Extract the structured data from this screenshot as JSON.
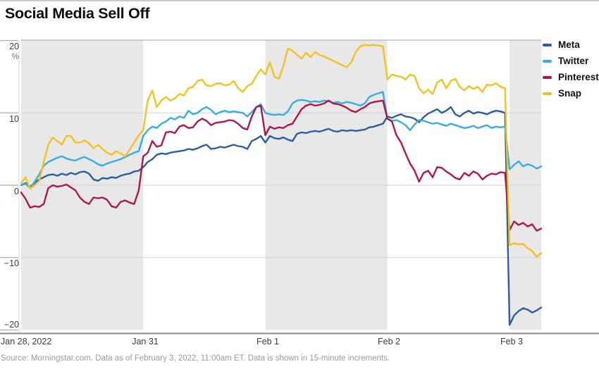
{
  "title": "Social Media Sell Off",
  "source": "Source: Morningstar.com. Data as of February 3, 2022, 11:00am ET. Data is shown in 15-minute increments.",
  "y_axis": {
    "unit": "%",
    "ticks": [
      "20",
      "10",
      "0",
      "−10",
      "−20"
    ],
    "values": [
      20,
      10,
      0,
      -10,
      -20
    ]
  },
  "x_axis": {
    "labels": [
      "Jan 28, 2022",
      "Jan 31",
      "Feb 1",
      "Feb 2",
      "Feb 3"
    ]
  },
  "chart_data": {
    "type": "line",
    "title": "Social Media Sell Off",
    "ylabel": "%",
    "ylim": [
      -20,
      20
    ],
    "gridline_values": [
      10,
      0,
      -10
    ],
    "increment": "15-minute",
    "n_points": 116,
    "x_tick_labels": [
      "Jan 28, 2022",
      "Jan 31",
      "Feb 1",
      "Feb 2",
      "Feb 3"
    ],
    "x_tick_indices": [
      0,
      27,
      54,
      81,
      108
    ],
    "session_bands": {
      "boundary_indices": [
        0,
        27,
        54,
        81,
        108,
        115
      ],
      "fills": [
        "shaded",
        "white",
        "shaded",
        "white",
        "shaded"
      ]
    },
    "series": [
      {
        "name": "Meta",
        "color": "#2b5d9f",
        "values": [
          0,
          0.3,
          -0.2,
          0.3,
          0.8,
          1.1,
          1.4,
          1.5,
          1.3,
          1.6,
          1.4,
          1.7,
          1.5,
          1.8,
          1.9,
          1.6,
          0.8,
          0.6,
          1.0,
          0.9,
          1.1,
          1.0,
          1.3,
          1.5,
          1.6,
          1.9,
          2.0,
          2.5,
          3.2,
          3.6,
          4.2,
          4.4,
          4.3,
          4.5,
          4.6,
          4.7,
          4.8,
          5.0,
          4.9,
          5.1,
          5.4,
          5.6,
          5.0,
          5.1,
          5.3,
          5.2,
          5.4,
          5.6,
          5.4,
          5.3,
          5.0,
          6.1,
          6.4,
          6.8,
          5.9,
          6.8,
          6.5,
          6.4,
          6.6,
          6.3,
          6.1,
          7.1,
          7.3,
          7.2,
          7.4,
          7.5,
          7.4,
          7.6,
          7.8,
          7.5,
          7.4,
          7.6,
          7.5,
          7.6,
          7.5,
          7.6,
          7.7,
          8.0,
          8.1,
          8.3,
          8.5,
          9.5,
          9.3,
          9.6,
          9.8,
          9.5,
          9.4,
          9.2,
          8.7,
          9.4,
          9.9,
          10.2,
          10.5,
          10.0,
          10.3,
          10.8,
          9.8,
          9.5,
          10.0,
          10.3,
          9.9,
          10.1,
          10.0,
          9.8,
          10.1,
          10.3,
          10.2,
          10.0,
          -19.3,
          -18.0,
          -17.4,
          -17.0,
          -17.2,
          -17.6,
          -17.3,
          -16.9
        ]
      },
      {
        "name": "Twitter",
        "color": "#36aee1",
        "values": [
          0,
          0.2,
          -0.4,
          0.5,
          1.5,
          2.7,
          3.2,
          3.5,
          3.8,
          4.0,
          3.7,
          3.5,
          3.4,
          3.7,
          3.9,
          3.6,
          3.3,
          2.9,
          2.7,
          3.0,
          3.2,
          3.4,
          3.6,
          3.9,
          4.2,
          4.5,
          4.7,
          6.8,
          7.6,
          8.1,
          7.9,
          8.5,
          8.8,
          9.3,
          9.1,
          9.5,
          9.3,
          10.3,
          9.8,
          10.0,
          10.5,
          10.8,
          10.4,
          9.8,
          10.1,
          10.3,
          10.1,
          10.2,
          10.1,
          10.0,
          9.5,
          10.1,
          10.8,
          11.2,
          10.0,
          9.8,
          9.7,
          9.8,
          9.7,
          10.2,
          11.3,
          11.7,
          11.8,
          11.7,
          11.5,
          11.6,
          11.5,
          11.7,
          11.6,
          11.4,
          11.5,
          11.3,
          11.5,
          11.4,
          11.2,
          11.0,
          11.3,
          12.2,
          12.5,
          12.7,
          12.9,
          9.2,
          8.9,
          9.0,
          8.7,
          8.3,
          7.6,
          8.4,
          9.0,
          8.9,
          8.7,
          8.5,
          8.6,
          8.4,
          8.2,
          8.5,
          8.3,
          8.1,
          7.9,
          8.0,
          8.2,
          7.9,
          8.1,
          8.3,
          7.9,
          8.1,
          8.0,
          8.1,
          2.2,
          2.8,
          3.3,
          2.6,
          2.9,
          2.7,
          2.3,
          2.6
        ]
      },
      {
        "name": "Pinterest",
        "color": "#b01747",
        "values": [
          -1.0,
          -1.9,
          -3.1,
          -2.9,
          -3.0,
          -2.6,
          -0.4,
          0.0,
          -0.2,
          -0.1,
          0.1,
          -0.3,
          -0.7,
          -1.7,
          -2.3,
          -2.6,
          -1.7,
          -1.8,
          -1.7,
          -2.0,
          -2.9,
          -3.1,
          -2.3,
          -2.1,
          -2.4,
          -2.6,
          -0.7,
          4.0,
          4.5,
          6.1,
          5.3,
          5.5,
          7.3,
          7.4,
          7.2,
          8.1,
          8.3,
          7.9,
          8.0,
          8.8,
          9.2,
          8.9,
          8.3,
          8.6,
          8.7,
          8.8,
          9.0,
          8.9,
          8.5,
          7.9,
          7.7,
          9.5,
          10.8,
          11.0,
          6.9,
          8.1,
          7.8,
          8.0,
          7.9,
          8.3,
          8.5,
          9.5,
          10.5,
          11.0,
          11.2,
          11.0,
          11.1,
          11.3,
          11.7,
          11.3,
          11.2,
          11.0,
          10.7,
          10.3,
          10.1,
          10.5,
          10.8,
          11.3,
          11.5,
          11.6,
          11.7,
          9.2,
          8.8,
          6.9,
          5.9,
          4.4,
          3.0,
          2.0,
          0.5,
          1.7,
          2.0,
          1.1,
          2.5,
          2.4,
          1.9,
          1.5,
          1.0,
          0.8,
          1.7,
          1.3,
          1.9,
          1.6,
          0.8,
          1.3,
          1.6,
          1.5,
          1.8,
          1.7,
          -6.2,
          -5.0,
          -5.5,
          -5.2,
          -5.7,
          -5.4,
          -6.3,
          -6.0
        ]
      },
      {
        "name": "Snap",
        "color": "#f4c21f",
        "values": [
          0.3,
          1.1,
          -0.5,
          0.0,
          0.6,
          3.2,
          5.6,
          6.6,
          6.1,
          5.6,
          6.8,
          6.8,
          5.9,
          5.9,
          6.2,
          5.8,
          5.1,
          5.6,
          5.0,
          4.5,
          4.2,
          4.7,
          4.4,
          4.0,
          4.9,
          5.9,
          6.9,
          7.6,
          11.7,
          13.1,
          10.8,
          11.7,
          12.2,
          11.7,
          12.0,
          12.6,
          12.4,
          13.4,
          13.6,
          14.4,
          14.6,
          13.8,
          13.7,
          14.0,
          14.1,
          13.8,
          13.9,
          14.4,
          13.4,
          12.9,
          13.7,
          14.0,
          15.1,
          16.0,
          15.3,
          17.0,
          15.0,
          14.7,
          16.5,
          18.9,
          18.6,
          18.0,
          17.5,
          18.3,
          17.7,
          18.4,
          18.0,
          17.8,
          17.5,
          17.2,
          16.9,
          16.6,
          16.3,
          17.0,
          18.4,
          19.2,
          19.4,
          19.3,
          19.4,
          19.3,
          19.2,
          14.6,
          15.3,
          15.1,
          15.0,
          14.6,
          15.3,
          15.1,
          13.4,
          12.7,
          13.2,
          12.6,
          14.2,
          14.6,
          13.4,
          14.4,
          14.7,
          13.6,
          13.1,
          13.7,
          13.3,
          13.6,
          12.9,
          13.9,
          13.8,
          14.1,
          13.6,
          13.4,
          -8.3,
          -8.0,
          -8.2,
          -8.1,
          -8.7,
          -9.1,
          -9.9,
          -9.4
        ]
      }
    ]
  }
}
